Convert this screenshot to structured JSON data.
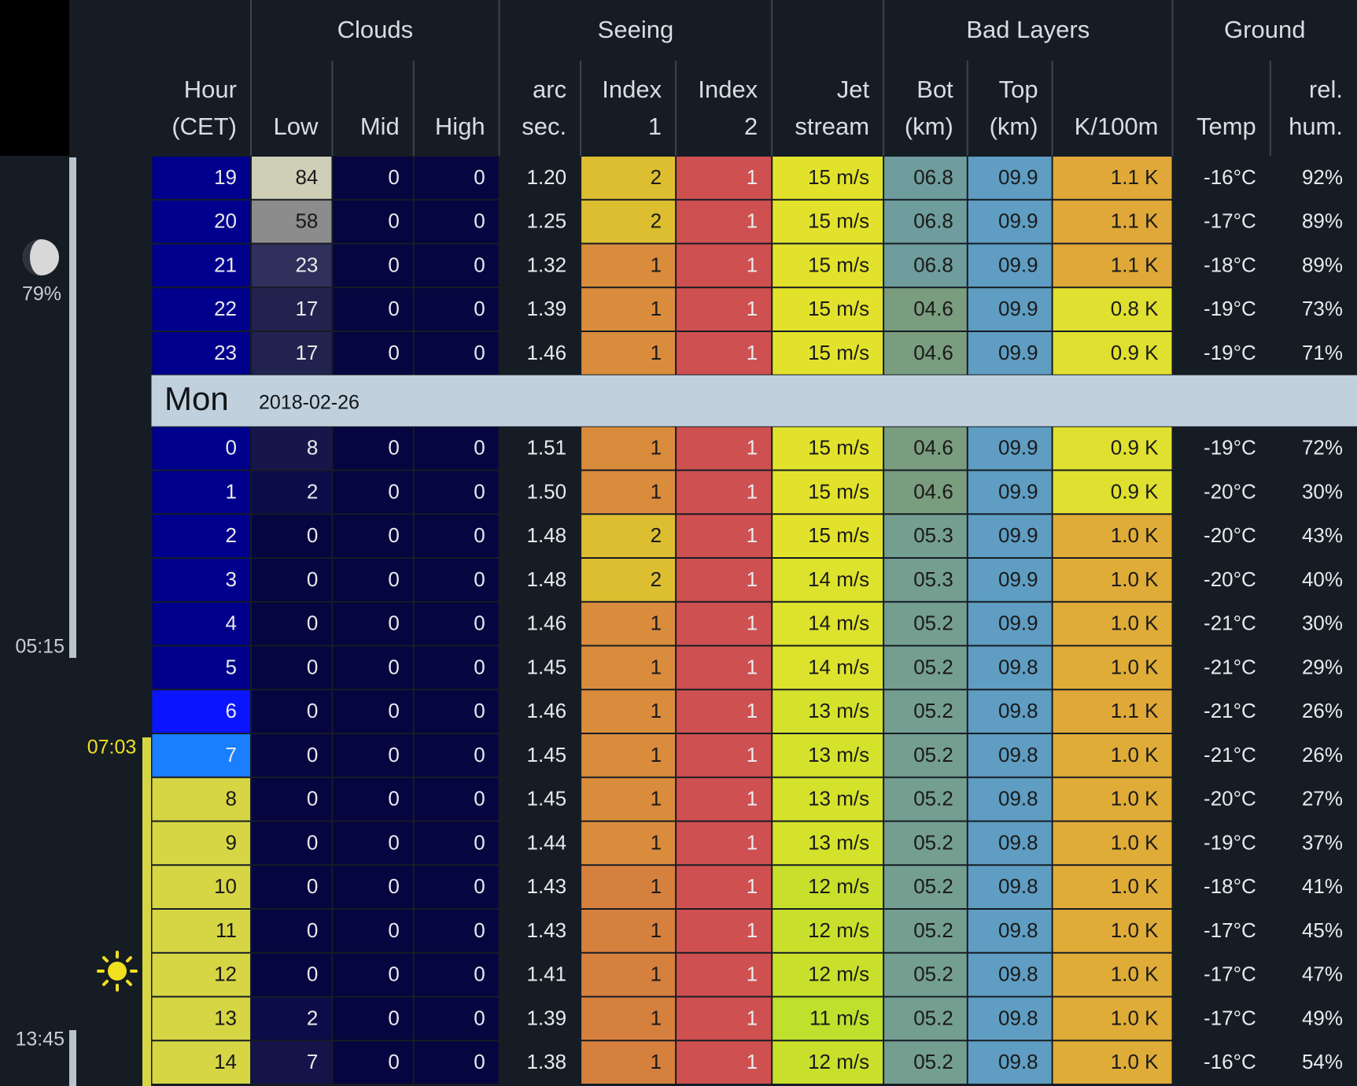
{
  "header": {
    "groups": [
      "Clouds",
      "Seeing",
      "Bad Layers",
      "Ground"
    ],
    "columns": [
      [
        "Hour",
        "(CET)"
      ],
      [
        "Low"
      ],
      [
        "Mid"
      ],
      [
        "High"
      ],
      [
        "arc",
        "sec."
      ],
      [
        "Index",
        "1"
      ],
      [
        "Index",
        "2"
      ],
      [
        "Jet",
        "stream"
      ],
      [
        "Bot",
        "(km)"
      ],
      [
        "Top",
        "(km)"
      ],
      [
        "K/100m"
      ],
      [
        "Temp"
      ],
      [
        "rel.",
        "hum."
      ]
    ]
  },
  "side": {
    "moon_illumination": "79%",
    "times": [
      "05:15",
      "07:03",
      "13:45"
    ]
  },
  "sections": [
    {
      "rows": [
        {
          "cells": [
            "19",
            "84",
            "0",
            "0",
            "1.20",
            "2",
            "1",
            "15 m/s",
            "06.8",
            "09.9",
            "1.1 K",
            "-16°C",
            "92%"
          ],
          "colors": [
            "#00008c",
            "#cfcfb8",
            "#050540",
            "#050540",
            "#161c24",
            "#dcbe30",
            "#cf5050",
            "#e2e22c",
            "#6f9c9c",
            "#5f9dc2",
            "#dfa838",
            "#161c24",
            "#161c24"
          ]
        },
        {
          "cells": [
            "20",
            "58",
            "0",
            "0",
            "1.25",
            "2",
            "1",
            "15 m/s",
            "06.8",
            "09.9",
            "1.1 K",
            "-17°C",
            "89%"
          ],
          "colors": [
            "#00008c",
            "#8c8c8c",
            "#050540",
            "#050540",
            "#161c24",
            "#dcbe30",
            "#cf5050",
            "#e2e22c",
            "#6f9c9c",
            "#5f9dc2",
            "#dfa838",
            "#161c24",
            "#161c24"
          ]
        },
        {
          "cells": [
            "21",
            "23",
            "0",
            "0",
            "1.32",
            "1",
            "1",
            "15 m/s",
            "06.8",
            "09.9",
            "1.1 K",
            "-18°C",
            "89%"
          ],
          "colors": [
            "#00008c",
            "#30305c",
            "#050540",
            "#050540",
            "#161c24",
            "#d98c3c",
            "#cf5050",
            "#e2e22c",
            "#6f9c9c",
            "#5f9dc2",
            "#dfa838",
            "#161c24",
            "#161c24"
          ]
        },
        {
          "cells": [
            "22",
            "17",
            "0",
            "0",
            "1.39",
            "1",
            "1",
            "15 m/s",
            "04.6",
            "09.9",
            "0.8 K",
            "-19°C",
            "73%"
          ],
          "colors": [
            "#00008c",
            "#22224e",
            "#050540",
            "#050540",
            "#161c24",
            "#d98c3c",
            "#cf5050",
            "#e2e22c",
            "#7a9c7f",
            "#5f9dc2",
            "#e0e030",
            "#161c24",
            "#161c24"
          ]
        },
        {
          "cells": [
            "23",
            "17",
            "0",
            "0",
            "1.46",
            "1",
            "1",
            "15 m/s",
            "04.6",
            "09.9",
            "0.9 K",
            "-19°C",
            "71%"
          ],
          "colors": [
            "#00008c",
            "#22224e",
            "#050540",
            "#050540",
            "#161c24",
            "#d98c3c",
            "#cf5050",
            "#e2e22c",
            "#7a9c7f",
            "#5f9dc2",
            "#e0e030",
            "#161c24",
            "#161c24"
          ]
        }
      ]
    },
    {
      "day": "Mon",
      "date": "2018-02-26",
      "rows": [
        {
          "cells": [
            "0",
            "8",
            "0",
            "0",
            "1.51",
            "1",
            "1",
            "15 m/s",
            "04.6",
            "09.9",
            "0.9 K",
            "-19°C",
            "72%"
          ],
          "colors": [
            "#00008c",
            "#16164a",
            "#050540",
            "#050540",
            "#161c24",
            "#d98c3c",
            "#cf5050",
            "#e2e22c",
            "#7a9c7f",
            "#5f9dc2",
            "#e0e030",
            "#161c24",
            "#161c24"
          ]
        },
        {
          "cells": [
            "1",
            "2",
            "0",
            "0",
            "1.50",
            "1",
            "1",
            "15 m/s",
            "04.6",
            "09.9",
            "0.9 K",
            "-20°C",
            "30%"
          ],
          "colors": [
            "#00008c",
            "#0c0c48",
            "#050540",
            "#050540",
            "#161c24",
            "#d98c3c",
            "#cf5050",
            "#e2e22c",
            "#7a9c7f",
            "#5f9dc2",
            "#e0e030",
            "#161c24",
            "#161c24"
          ]
        },
        {
          "cells": [
            "2",
            "0",
            "0",
            "0",
            "1.48",
            "2",
            "1",
            "15 m/s",
            "05.3",
            "09.9",
            "1.0 K",
            "-20°C",
            "43%"
          ],
          "colors": [
            "#00008c",
            "#050540",
            "#050540",
            "#050540",
            "#161c24",
            "#dcbe30",
            "#cf5050",
            "#e2e22c",
            "#749e90",
            "#5f9dc2",
            "#e0ac38",
            "#161c24",
            "#161c24"
          ]
        },
        {
          "cells": [
            "3",
            "0",
            "0",
            "0",
            "1.48",
            "2",
            "1",
            "14 m/s",
            "05.3",
            "09.9",
            "1.0 K",
            "-20°C",
            "40%"
          ],
          "colors": [
            "#00008c",
            "#050540",
            "#050540",
            "#050540",
            "#161c24",
            "#dcbe30",
            "#cf5050",
            "#dde22c",
            "#749e90",
            "#5f9dc2",
            "#e0ac38",
            "#161c24",
            "#161c24"
          ]
        },
        {
          "cells": [
            "4",
            "0",
            "0",
            "0",
            "1.46",
            "1",
            "1",
            "14 m/s",
            "05.2",
            "09.9",
            "1.0 K",
            "-21°C",
            "30%"
          ],
          "colors": [
            "#00008c",
            "#050540",
            "#050540",
            "#050540",
            "#161c24",
            "#d98c3c",
            "#cf5050",
            "#dde22c",
            "#749e90",
            "#5f9dc2",
            "#e0ac38",
            "#161c24",
            "#161c24"
          ]
        },
        {
          "cells": [
            "5",
            "0",
            "0",
            "0",
            "1.45",
            "1",
            "1",
            "14 m/s",
            "05.2",
            "09.8",
            "1.0 K",
            "-21°C",
            "29%"
          ],
          "colors": [
            "#00008c",
            "#050540",
            "#050540",
            "#050540",
            "#161c24",
            "#d98c3c",
            "#cf5050",
            "#dde22c",
            "#749e90",
            "#5f9dc2",
            "#e0ac38",
            "#161c24",
            "#161c24"
          ]
        },
        {
          "cells": [
            "6",
            "0",
            "0",
            "0",
            "1.46",
            "1",
            "1",
            "13 m/s",
            "05.2",
            "09.8",
            "1.1 K",
            "-21°C",
            "26%"
          ],
          "colors": [
            "#0a14ff",
            "#050540",
            "#050540",
            "#050540",
            "#161c24",
            "#d98c3c",
            "#cf5050",
            "#d4e22c",
            "#749e90",
            "#5f9dc2",
            "#dfa838",
            "#161c24",
            "#161c24"
          ]
        },
        {
          "cells": [
            "7",
            "0",
            "0",
            "0",
            "1.45",
            "1",
            "1",
            "13 m/s",
            "05.2",
            "09.8",
            "1.0 K",
            "-21°C",
            "26%"
          ],
          "colors": [
            "#1a7fff",
            "#050540",
            "#050540",
            "#050540",
            "#161c24",
            "#d98c3c",
            "#cf5050",
            "#d4e22c",
            "#749e90",
            "#5f9dc2",
            "#e0ac38",
            "#161c24",
            "#161c24"
          ]
        },
        {
          "cells": [
            "8",
            "0",
            "0",
            "0",
            "1.45",
            "1",
            "1",
            "13 m/s",
            "05.2",
            "09.8",
            "1.0 K",
            "-20°C",
            "27%"
          ],
          "colors": [
            "#d6d645",
            "#050540",
            "#050540",
            "#050540",
            "#161c24",
            "#d98c3c",
            "#cf5050",
            "#d4e22c",
            "#749e90",
            "#5f9dc2",
            "#e0ac38",
            "#161c24",
            "#161c24"
          ]
        },
        {
          "cells": [
            "9",
            "0",
            "0",
            "0",
            "1.44",
            "1",
            "1",
            "13 m/s",
            "05.2",
            "09.8",
            "1.0 K",
            "-19°C",
            "37%"
          ],
          "colors": [
            "#d6d645",
            "#050540",
            "#050540",
            "#050540",
            "#161c24",
            "#d98c3c",
            "#cf5050",
            "#d4e22c",
            "#749e90",
            "#5f9dc2",
            "#e0ac38",
            "#161c24",
            "#161c24"
          ]
        },
        {
          "cells": [
            "10",
            "0",
            "0",
            "0",
            "1.43",
            "1",
            "1",
            "12 m/s",
            "05.2",
            "09.8",
            "1.0 K",
            "-18°C",
            "41%"
          ],
          "colors": [
            "#d6d645",
            "#050540",
            "#050540",
            "#050540",
            "#161c24",
            "#d6803e",
            "#cf5050",
            "#c8e02c",
            "#749e90",
            "#5f9dc2",
            "#e0ac38",
            "#161c24",
            "#161c24"
          ]
        },
        {
          "cells": [
            "11",
            "0",
            "0",
            "0",
            "1.43",
            "1",
            "1",
            "12 m/s",
            "05.2",
            "09.8",
            "1.0 K",
            "-17°C",
            "45%"
          ],
          "colors": [
            "#d6d645",
            "#050540",
            "#050540",
            "#050540",
            "#161c24",
            "#d6803e",
            "#cf5050",
            "#c8e02c",
            "#749e90",
            "#5f9dc2",
            "#e0ac38",
            "#161c24",
            "#161c24"
          ]
        },
        {
          "cells": [
            "12",
            "0",
            "0",
            "0",
            "1.41",
            "1",
            "1",
            "12 m/s",
            "05.2",
            "09.8",
            "1.0 K",
            "-17°C",
            "47%"
          ],
          "colors": [
            "#d6d645",
            "#050540",
            "#050540",
            "#050540",
            "#161c24",
            "#d6803e",
            "#cf5050",
            "#c8e02c",
            "#749e90",
            "#5f9dc2",
            "#e0ac38",
            "#161c24",
            "#161c24"
          ]
        },
        {
          "cells": [
            "13",
            "2",
            "0",
            "0",
            "1.39",
            "1",
            "1",
            "11 m/s",
            "05.2",
            "09.8",
            "1.0 K",
            "-17°C",
            "49%"
          ],
          "colors": [
            "#d6d645",
            "#0c0c48",
            "#050540",
            "#050540",
            "#161c24",
            "#d6803e",
            "#cf5050",
            "#bfe02c",
            "#749e90",
            "#5f9dc2",
            "#e0ac38",
            "#161c24",
            "#161c24"
          ]
        },
        {
          "cells": [
            "14",
            "7",
            "0",
            "0",
            "1.38",
            "1",
            "1",
            "12 m/s",
            "05.2",
            "09.8",
            "1.0 K",
            "-16°C",
            "54%"
          ],
          "colors": [
            "#d6d645",
            "#14144a",
            "#050540",
            "#050540",
            "#161c24",
            "#d6803e",
            "#cf5050",
            "#c8e02c",
            "#749e90",
            "#5f9dc2",
            "#e0ac38",
            "#161c24",
            "#161c24"
          ]
        }
      ]
    }
  ]
}
